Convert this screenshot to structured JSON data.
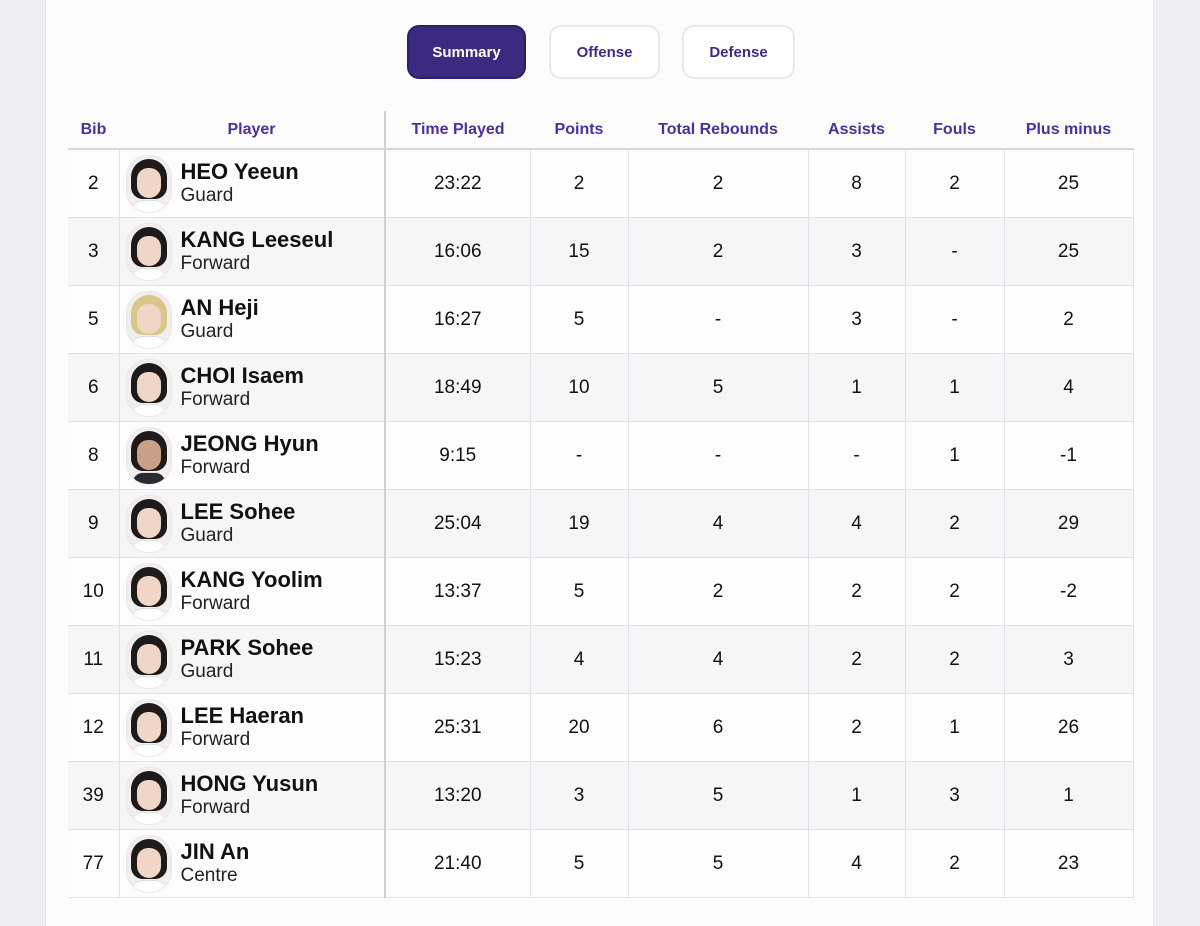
{
  "tabs": [
    "Summary",
    "Offense",
    "Defense"
  ],
  "active_tab": "Summary",
  "columns": {
    "bib": "Bib",
    "player": "Player",
    "time_played": "Time Played",
    "points": "Points",
    "total_rebounds": "Total Rebounds",
    "assists": "Assists",
    "fouls": "Fouls",
    "plus_minus": "Plus minus"
  },
  "rows": [
    {
      "bib": "2",
      "name": "HEO Yeeun",
      "position": "Guard",
      "time": "23:22",
      "points": "2",
      "rebounds": "2",
      "assists": "8",
      "fouls": "2",
      "plus_minus": "25"
    },
    {
      "bib": "3",
      "name": "KANG Leeseul",
      "position": "Forward",
      "time": "16:06",
      "points": "15",
      "rebounds": "2",
      "assists": "3",
      "fouls": "-",
      "plus_minus": "25"
    },
    {
      "bib": "5",
      "name": "AN Heji",
      "position": "Guard",
      "time": "16:27",
      "points": "5",
      "rebounds": "-",
      "assists": "3",
      "fouls": "-",
      "plus_minus": "2"
    },
    {
      "bib": "6",
      "name": "CHOI Isaem",
      "position": "Forward",
      "time": "18:49",
      "points": "10",
      "rebounds": "5",
      "assists": "1",
      "fouls": "1",
      "plus_minus": "4"
    },
    {
      "bib": "8",
      "name": "JEONG Hyun",
      "position": "Forward",
      "time": "9:15",
      "points": "-",
      "rebounds": "-",
      "assists": "-",
      "fouls": "1",
      "plus_minus": "-1"
    },
    {
      "bib": "9",
      "name": "LEE Sohee",
      "position": "Guard",
      "time": "25:04",
      "points": "19",
      "rebounds": "4",
      "assists": "4",
      "fouls": "2",
      "plus_minus": "29"
    },
    {
      "bib": "10",
      "name": "KANG Yoolim",
      "position": "Forward",
      "time": "13:37",
      "points": "5",
      "rebounds": "2",
      "assists": "2",
      "fouls": "2",
      "plus_minus": "-2"
    },
    {
      "bib": "11",
      "name": "PARK Sohee",
      "position": "Guard",
      "time": "15:23",
      "points": "4",
      "rebounds": "4",
      "assists": "2",
      "fouls": "2",
      "plus_minus": "3"
    },
    {
      "bib": "12",
      "name": "LEE Haeran",
      "position": "Forward",
      "time": "25:31",
      "points": "20",
      "rebounds": "6",
      "assists": "2",
      "fouls": "1",
      "plus_minus": "26"
    },
    {
      "bib": "39",
      "name": "HONG Yusun",
      "position": "Forward",
      "time": "13:20",
      "points": "3",
      "rebounds": "5",
      "assists": "1",
      "fouls": "3",
      "plus_minus": "1"
    },
    {
      "bib": "77",
      "name": "JIN An",
      "position": "Centre",
      "time": "21:40",
      "points": "5",
      "rebounds": "5",
      "assists": "4",
      "fouls": "2",
      "plus_minus": "23"
    }
  ],
  "colors": {
    "accent": "#3b2a7f",
    "header_text": "#4a2fa0"
  }
}
